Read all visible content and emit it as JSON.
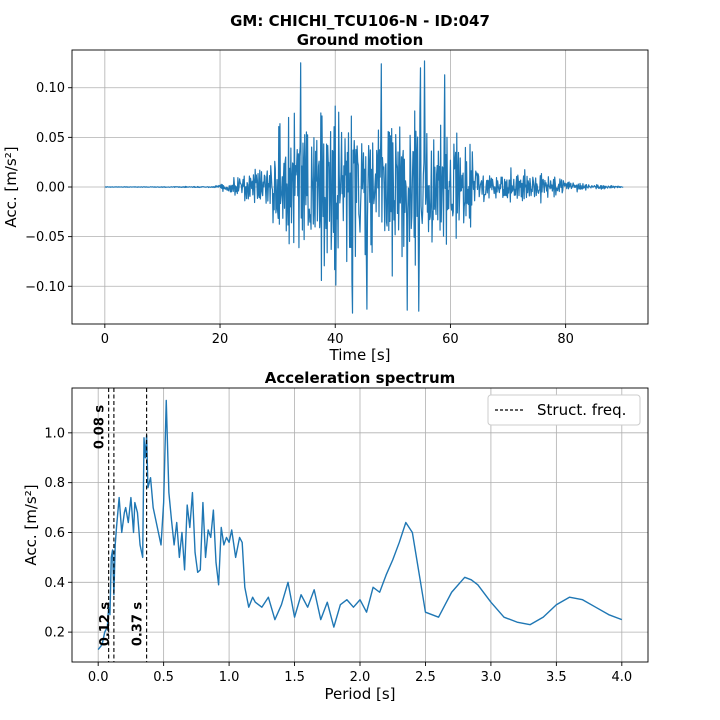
{
  "suptitle": "GM: CHICHI_TCU106-N - ID:047",
  "colors": {
    "series": "#1f77b4",
    "grid": "#b0b0b0",
    "struct": "#000000"
  },
  "chart_data": [
    {
      "type": "line",
      "title": "Ground motion",
      "xlabel": "Time [s]",
      "ylabel": "Acc. [m/s²]",
      "xlim": [
        -5.7,
        94.3
      ],
      "ylim": [
        -0.138,
        0.138
      ],
      "xticks": [
        0,
        20,
        40,
        60,
        80
      ],
      "xtick_labels": [
        "0",
        "20",
        "40",
        "60",
        "80"
      ],
      "yticks": [
        -0.1,
        -0.05,
        0.0,
        0.05,
        0.1
      ],
      "ytick_labels": [
        "−0.10",
        "−0.05",
        "0.00",
        "0.05",
        "0.10"
      ],
      "grid": true,
      "series": [
        {
          "envelope": {
            "t": [
              0,
              19,
              21,
              24,
              28,
              30,
              33,
              36,
              40,
              45,
              50,
              55,
              58,
              61,
              64,
              66,
              70,
              75,
              80,
              84,
              88,
              90
            ],
            "amp": [
              0.0003,
              0.0008,
              0.008,
              0.02,
              0.035,
              0.09,
              0.11,
              0.11,
              0.12,
              0.11,
              0.115,
              0.115,
              0.09,
              0.08,
              0.05,
              0.025,
              0.025,
              0.022,
              0.012,
              0.004,
              0.002,
              0.0005
            ]
          },
          "peaks": [
            {
              "t": 34.0,
              "v": 0.125
            },
            {
              "t": 43.0,
              "v": -0.127
            },
            {
              "t": 45.5,
              "v": -0.123
            },
            {
              "t": 48.0,
              "v": 0.124
            },
            {
              "t": 52.5,
              "v": -0.124
            },
            {
              "t": 54.5,
              "v": -0.125
            },
            {
              "t": 54.8,
              "v": 0.12
            },
            {
              "t": 55.5,
              "v": 0.127
            },
            {
              "t": 59.0,
              "v": 0.113
            }
          ]
        }
      ]
    },
    {
      "type": "line",
      "title": "Acceleration spectrum",
      "xlabel": "Period [s]",
      "ylabel": "Acc. [m/s²]",
      "xlim": [
        -0.2,
        4.2
      ],
      "ylim": [
        0.08,
        1.18
      ],
      "xticks": [
        0.0,
        0.5,
        1.0,
        1.5,
        2.0,
        2.5,
        3.0,
        3.5,
        4.0
      ],
      "xtick_labels": [
        "0.0",
        "0.5",
        "1.0",
        "1.5",
        "2.0",
        "2.5",
        "3.0",
        "3.5",
        "4.0"
      ],
      "yticks": [
        0.2,
        0.4,
        0.6,
        0.8,
        1.0
      ],
      "ytick_labels": [
        "0.2",
        "0.4",
        "0.6",
        "0.8",
        "1.0"
      ],
      "grid": true,
      "legend": {
        "label": "Struct. freq.",
        "position": "upper-right"
      },
      "struct_lines": [
        {
          "x": 0.08,
          "label": "0.08 s",
          "label_pos": "top"
        },
        {
          "x": 0.12,
          "label": "0.12 s",
          "label_pos": "bottom"
        },
        {
          "x": 0.37,
          "label": "0.37 s",
          "label_pos": "bottom"
        }
      ],
      "series": [
        {
          "x": [
            0.0,
            0.03,
            0.05,
            0.07,
            0.08,
            0.09,
            0.1,
            0.11,
            0.12,
            0.13,
            0.14,
            0.16,
            0.18,
            0.2,
            0.21,
            0.23,
            0.25,
            0.27,
            0.28,
            0.3,
            0.32,
            0.34,
            0.35,
            0.36,
            0.37,
            0.38,
            0.4,
            0.42,
            0.44,
            0.46,
            0.48,
            0.5,
            0.52,
            0.54,
            0.56,
            0.58,
            0.6,
            0.62,
            0.64,
            0.66,
            0.68,
            0.7,
            0.72,
            0.74,
            0.76,
            0.78,
            0.8,
            0.82,
            0.84,
            0.86,
            0.88,
            0.9,
            0.92,
            0.94,
            0.96,
            0.98,
            1.0,
            1.02,
            1.05,
            1.08,
            1.1,
            1.12,
            1.15,
            1.18,
            1.2,
            1.25,
            1.3,
            1.35,
            1.4,
            1.45,
            1.5,
            1.55,
            1.6,
            1.65,
            1.7,
            1.75,
            1.8,
            1.85,
            1.9,
            1.95,
            2.0,
            2.05,
            2.1,
            2.15,
            2.2,
            2.25,
            2.3,
            2.35,
            2.4,
            2.45,
            2.5,
            2.55,
            2.6,
            2.65,
            2.7,
            2.8,
            2.85,
            2.9,
            3.0,
            3.1,
            3.2,
            3.3,
            3.4,
            3.5,
            3.6,
            3.7,
            3.8,
            3.9,
            4.0
          ],
          "y": [
            0.13,
            0.15,
            0.2,
            0.22,
            0.3,
            0.27,
            0.5,
            0.53,
            0.35,
            0.55,
            0.62,
            0.74,
            0.6,
            0.68,
            0.7,
            0.64,
            0.74,
            0.6,
            0.72,
            0.68,
            0.55,
            0.5,
            0.98,
            0.9,
            0.99,
            0.78,
            0.82,
            0.7,
            0.65,
            0.6,
            0.55,
            0.72,
            1.13,
            0.76,
            0.65,
            0.55,
            0.64,
            0.5,
            0.6,
            0.45,
            0.71,
            0.62,
            0.76,
            0.52,
            0.44,
            0.45,
            0.72,
            0.5,
            0.61,
            0.58,
            0.69,
            0.48,
            0.39,
            0.62,
            0.55,
            0.58,
            0.56,
            0.61,
            0.5,
            0.58,
            0.56,
            0.38,
            0.3,
            0.34,
            0.32,
            0.3,
            0.34,
            0.25,
            0.31,
            0.4,
            0.26,
            0.35,
            0.3,
            0.37,
            0.25,
            0.32,
            0.22,
            0.31,
            0.33,
            0.3,
            0.33,
            0.28,
            0.38,
            0.36,
            0.43,
            0.49,
            0.56,
            0.64,
            0.6,
            0.44,
            0.28,
            0.27,
            0.26,
            0.31,
            0.36,
            0.42,
            0.41,
            0.39,
            0.32,
            0.26,
            0.24,
            0.23,
            0.26,
            0.31,
            0.34,
            0.33,
            0.3,
            0.27,
            0.25
          ]
        }
      ]
    }
  ]
}
